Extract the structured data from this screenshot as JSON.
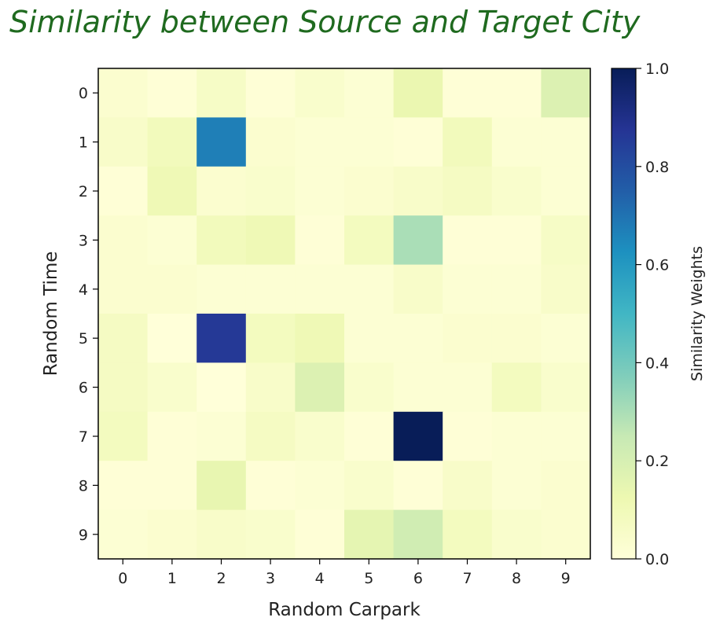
{
  "chart_data": {
    "type": "heatmap",
    "title": "Similarity between Source and Target City",
    "xlabel": "Random Carpark",
    "ylabel": "Random Time",
    "x_categories": [
      "0",
      "1",
      "2",
      "3",
      "4",
      "5",
      "6",
      "7",
      "8",
      "9"
    ],
    "y_categories": [
      "0",
      "1",
      "2",
      "3",
      "4",
      "5",
      "6",
      "7",
      "8",
      "9"
    ],
    "values": [
      [
        0.03,
        0.01,
        0.06,
        0.01,
        0.04,
        0.02,
        0.13,
        0.01,
        0.01,
        0.18
      ],
      [
        0.05,
        0.09,
        0.67,
        0.03,
        0.02,
        0.02,
        0.01,
        0.09,
        0.02,
        0.02
      ],
      [
        0.01,
        0.11,
        0.03,
        0.04,
        0.02,
        0.03,
        0.05,
        0.07,
        0.04,
        0.02
      ],
      [
        0.03,
        0.02,
        0.09,
        0.11,
        0.01,
        0.08,
        0.3,
        0.01,
        0.01,
        0.06
      ],
      [
        0.03,
        0.03,
        0.02,
        0.02,
        0.02,
        0.02,
        0.05,
        0.02,
        0.02,
        0.05
      ],
      [
        0.07,
        0.0,
        0.86,
        0.08,
        0.11,
        0.02,
        0.02,
        0.03,
        0.03,
        0.02
      ],
      [
        0.07,
        0.04,
        0.0,
        0.05,
        0.18,
        0.04,
        0.02,
        0.02,
        0.08,
        0.04
      ],
      [
        0.08,
        0.01,
        0.02,
        0.07,
        0.04,
        0.01,
        1.0,
        0.01,
        0.02,
        0.02
      ],
      [
        0.01,
        0.01,
        0.14,
        0.01,
        0.02,
        0.04,
        0.01,
        0.05,
        0.02,
        0.03
      ],
      [
        0.02,
        0.03,
        0.05,
        0.04,
        0.01,
        0.15,
        0.22,
        0.08,
        0.04,
        0.03
      ]
    ],
    "colorbar": {
      "label": "Similarity Weights",
      "range": [
        0.0,
        1.0
      ],
      "ticks": [
        "0.0",
        "0.2",
        "0.4",
        "0.6",
        "0.8",
        "1.0"
      ],
      "colormap": "YlGnBu"
    },
    "grid": false,
    "title_color": "#1f6a1f"
  }
}
